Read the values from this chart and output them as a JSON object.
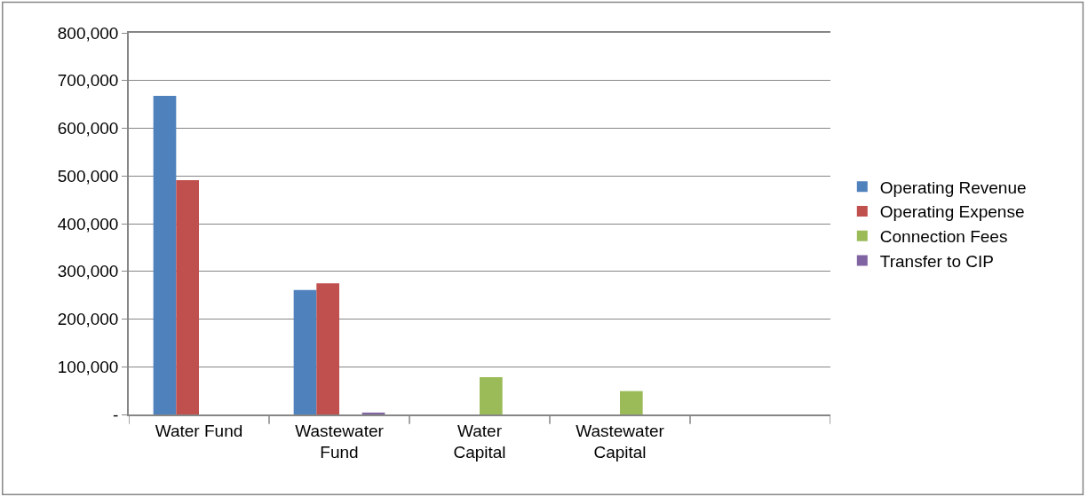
{
  "chart_data": {
    "type": "bar",
    "categories": [
      "Water Fund",
      "Wastewater Fund",
      "Water Capital",
      "Wastewater Capital",
      null
    ],
    "series": [
      {
        "name": "Operating Revenue",
        "color": "#4f81bd",
        "values": [
          668000,
          261000,
          null,
          null,
          null
        ]
      },
      {
        "name": "Operating Expense",
        "color": "#c0504d",
        "values": [
          491000,
          275000,
          null,
          null,
          null
        ]
      },
      {
        "name": "Connection Fees",
        "color": "#9bbb59",
        "values": [
          null,
          null,
          78000,
          49000,
          null
        ]
      },
      {
        "name": "Transfer to CIP",
        "color": "#8064a2",
        "values": [
          null,
          4000,
          null,
          null,
          null
        ]
      }
    ],
    "ylim": [
      0,
      800000
    ],
    "yticks": [
      {
        "value": 0,
        "label": "-"
      },
      {
        "value": 100000,
        "label": "100,000"
      },
      {
        "value": 200000,
        "label": "200,000"
      },
      {
        "value": 300000,
        "label": "300,000"
      },
      {
        "value": 400000,
        "label": "400,000"
      },
      {
        "value": 500000,
        "label": "500,000"
      },
      {
        "value": 600000,
        "label": "600,000"
      },
      {
        "value": 700000,
        "label": "700,000"
      },
      {
        "value": 800000,
        "label": "800,000"
      }
    ],
    "grid": "y",
    "legend": "right"
  }
}
